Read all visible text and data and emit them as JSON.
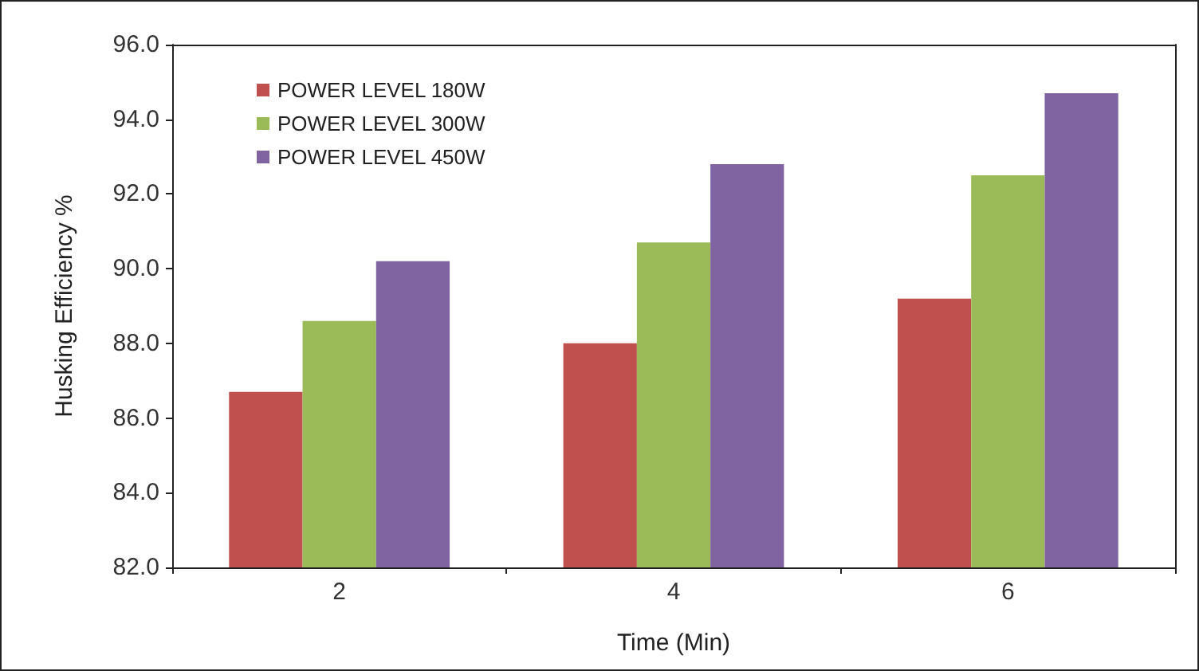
{
  "chart_data": {
    "type": "bar",
    "xlabel": "Time (Min)",
    "ylabel": "Husking Efficiency %",
    "categories": [
      "2",
      "4",
      "6"
    ],
    "series": [
      {
        "name": "POWER LEVEL 180W",
        "color": "#c0504d",
        "values": [
          86.7,
          88.0,
          89.2
        ]
      },
      {
        "name": "POWER LEVEL 300W",
        "color": "#9bbb59",
        "values": [
          88.6,
          90.7,
          92.5
        ]
      },
      {
        "name": "POWER LEVEL 450W",
        "color": "#8064a2",
        "values": [
          90.2,
          92.8,
          94.7
        ]
      }
    ],
    "ylim": [
      82,
      96
    ],
    "yticks": [
      {
        "value": 82,
        "label": "82.0"
      },
      {
        "value": 84,
        "label": "84.0"
      },
      {
        "value": 86,
        "label": "86.0"
      },
      {
        "value": 88,
        "label": "88.0"
      },
      {
        "value": 90,
        "label": "90.0"
      },
      {
        "value": 92,
        "label": "92.0"
      },
      {
        "value": 94,
        "label": "94.0"
      },
      {
        "value": 96,
        "label": "96.0"
      }
    ],
    "grid": false,
    "legend": "top left"
  }
}
